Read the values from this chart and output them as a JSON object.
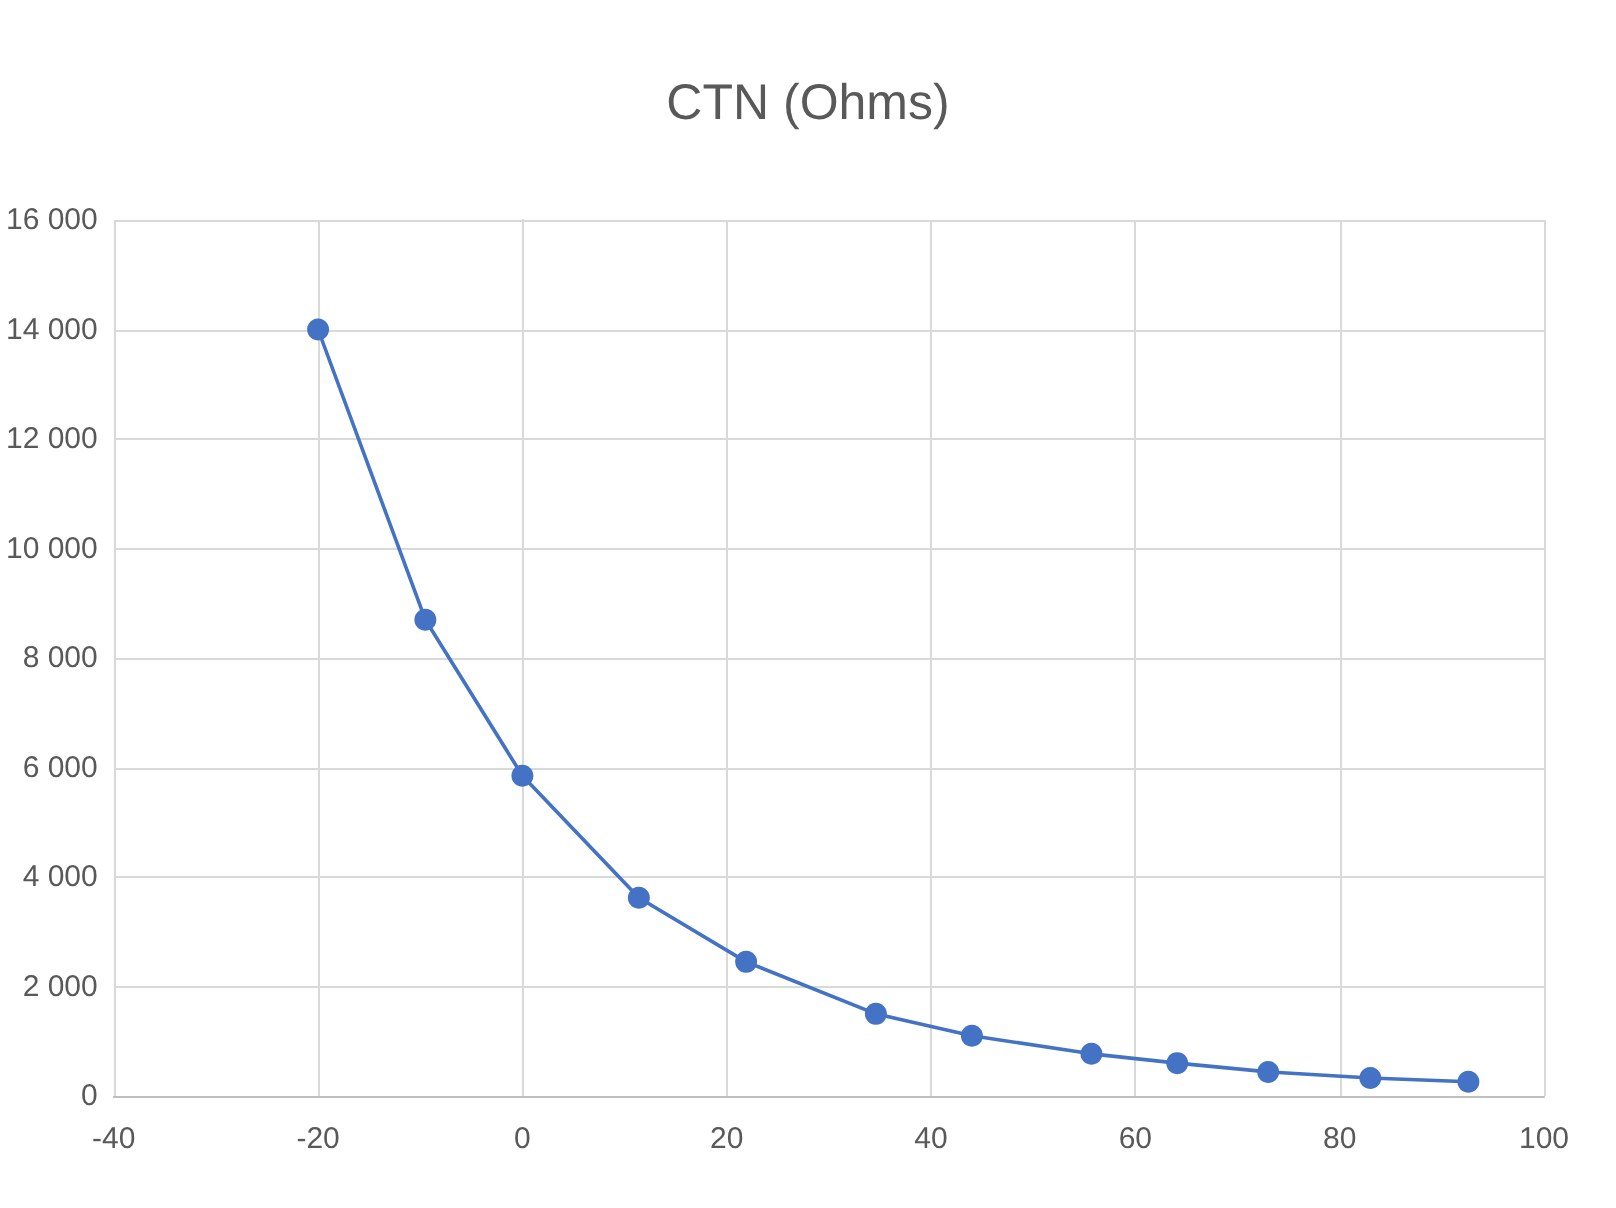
{
  "chart_data": {
    "type": "line",
    "title": "CTN (Ohms)",
    "x": [
      -20,
      -9.5,
      0,
      11.4,
      21.9,
      34.6,
      44,
      55.7,
      64.1,
      73,
      83,
      92.6
    ],
    "series": [
      {
        "color": "#4472c4",
        "values": [
          14000,
          8700,
          5850,
          3620,
          2450,
          1500,
          1100,
          770,
          600,
          440,
          330,
          260
        ]
      }
    ],
    "xlim": [
      -40,
      100
    ],
    "xticks": [
      -40,
      -20,
      0,
      20,
      40,
      60,
      80,
      100
    ],
    "ylim": [
      0,
      16000
    ],
    "yticks": [
      0,
      2000,
      4000,
      6000,
      8000,
      10000,
      12000,
      14000,
      16000
    ],
    "grid": true,
    "marker": "circle",
    "line_style": "solid"
  }
}
